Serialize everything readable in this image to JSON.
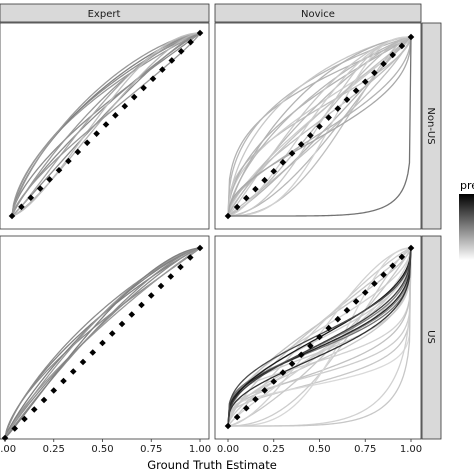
{
  "chart_data": {
    "type": "line",
    "xlabel": "Ground Truth Estimate",
    "ylabel": "",
    "xlim": [
      0,
      1
    ],
    "ylim": [
      0,
      1
    ],
    "x_ticks": [
      "0.00",
      "0.25",
      "0.50",
      "0.75",
      "1.00"
    ],
    "columns": [
      "Expert",
      "Novice"
    ],
    "rows": [
      "Non-US",
      "US"
    ],
    "legend": {
      "title": "pre",
      "type": "colorbar",
      "placement": "right",
      "low_color": "#ffffff",
      "high_color": "#000000"
    },
    "reference_line": {
      "style": "dotted-diamond",
      "x": [
        0,
        1
      ],
      "y": [
        0,
        1
      ]
    },
    "panels": [
      {
        "column": "Expert",
        "row": "Non-US",
        "curves": [
          {
            "a": 0.62,
            "b": 1.15,
            "shade": 0.55
          },
          {
            "a": 0.58,
            "b": 1.05,
            "shade": 0.6
          },
          {
            "a": 0.7,
            "b": 1.3,
            "shade": 0.5
          },
          {
            "a": 0.66,
            "b": 0.95,
            "shade": 0.55
          },
          {
            "a": 0.75,
            "b": 1.45,
            "shade": 0.6
          },
          {
            "a": 0.82,
            "b": 1.1,
            "shade": 0.55
          },
          {
            "a": 0.9,
            "b": 1.4,
            "shade": 0.6
          },
          {
            "a": 1.05,
            "b": 1.25,
            "shade": 0.55
          },
          {
            "a": 1.15,
            "b": 1.7,
            "shade": 0.65
          },
          {
            "a": 1.3,
            "b": 1.55,
            "shade": 0.7
          },
          {
            "a": 1.45,
            "b": 2.0,
            "shade": 0.75
          },
          {
            "a": 0.72,
            "b": 0.85,
            "shade": 0.6
          }
        ]
      },
      {
        "column": "Novice",
        "row": "Non-US",
        "curves": [
          {
            "a": 0.3,
            "b": 0.85,
            "shade": 0.7
          },
          {
            "a": 0.35,
            "b": 0.6,
            "shade": 0.75
          },
          {
            "a": 0.4,
            "b": 1.1,
            "shade": 0.72
          },
          {
            "a": 0.45,
            "b": 0.75,
            "shade": 0.8
          },
          {
            "a": 0.5,
            "b": 0.95,
            "shade": 0.7
          },
          {
            "a": 0.55,
            "b": 1.4,
            "shade": 0.78
          },
          {
            "a": 0.6,
            "b": 0.7,
            "shade": 0.75
          },
          {
            "a": 0.65,
            "b": 1.2,
            "shade": 0.72
          },
          {
            "a": 0.7,
            "b": 0.9,
            "shade": 0.8
          },
          {
            "a": 0.75,
            "b": 1.6,
            "shade": 0.7
          },
          {
            "a": 0.8,
            "b": 1.0,
            "shade": 0.76
          },
          {
            "a": 0.9,
            "b": 1.3,
            "shade": 0.72
          },
          {
            "a": 1.0,
            "b": 0.8,
            "shade": 0.75
          },
          {
            "a": 1.1,
            "b": 1.8,
            "shade": 0.78
          },
          {
            "a": 1.2,
            "b": 1.05,
            "shade": 0.7
          },
          {
            "a": 1.35,
            "b": 1.5,
            "shade": 0.74
          },
          {
            "a": 1.5,
            "b": 2.1,
            "shade": 0.8
          },
          {
            "a": 1.7,
            "b": 1.3,
            "shade": 0.72
          },
          {
            "a": 2.0,
            "b": 2.5,
            "shade": 0.78
          },
          {
            "a": 2.3,
            "b": 1.7,
            "shade": 0.75
          },
          {
            "a": 2.7,
            "b": 3.0,
            "shade": 0.82
          },
          {
            "a": 0.5,
            "b": 0.5,
            "shade": 0.7
          },
          {
            "a": 0.42,
            "b": 0.42,
            "shade": 0.66
          },
          {
            "a": 6.5,
            "b": 0.12,
            "shade": 0.45
          }
        ]
      },
      {
        "column": "Expert",
        "row": "US",
        "curves": [
          {
            "a": 0.65,
            "b": 0.95,
            "shade": 0.55
          },
          {
            "a": 0.7,
            "b": 1.1,
            "shade": 0.5
          },
          {
            "a": 0.75,
            "b": 1.25,
            "shade": 0.55
          },
          {
            "a": 0.8,
            "b": 1.05,
            "shade": 0.6
          },
          {
            "a": 0.85,
            "b": 1.3,
            "shade": 0.5
          },
          {
            "a": 0.9,
            "b": 1.2,
            "shade": 0.55
          },
          {
            "a": 0.95,
            "b": 1.45,
            "shade": 0.6
          },
          {
            "a": 1.0,
            "b": 1.35,
            "shade": 0.55
          },
          {
            "a": 1.1,
            "b": 1.6,
            "shade": 0.5
          }
        ]
      },
      {
        "column": "Novice",
        "row": "US",
        "curves": [
          {
            "a": 0.15,
            "b": 0.15,
            "shade": 0.8
          },
          {
            "a": 0.12,
            "b": 0.18,
            "shade": 0.82
          },
          {
            "a": 0.2,
            "b": 0.14,
            "shade": 0.78
          },
          {
            "a": 0.18,
            "b": 0.25,
            "shade": 0.8
          },
          {
            "a": 0.25,
            "b": 0.2,
            "shade": 0.76
          },
          {
            "a": 0.1,
            "b": 0.1,
            "shade": 0.85
          },
          {
            "a": 0.3,
            "b": 0.4,
            "shade": 0.8
          },
          {
            "a": 0.35,
            "b": 0.3,
            "shade": 0.78
          },
          {
            "a": 0.4,
            "b": 0.55,
            "shade": 0.82
          },
          {
            "a": 0.45,
            "b": 0.4,
            "shade": 0.8
          },
          {
            "a": 0.5,
            "b": 0.7,
            "shade": 0.76
          },
          {
            "a": 0.6,
            "b": 0.5,
            "shade": 0.8
          },
          {
            "a": 0.7,
            "b": 0.9,
            "shade": 0.78
          },
          {
            "a": 0.8,
            "b": 0.6,
            "shade": 0.82
          },
          {
            "a": 1.0,
            "b": 1.2,
            "shade": 0.8
          },
          {
            "a": 1.3,
            "b": 0.9,
            "shade": 0.78
          },
          {
            "a": 1.6,
            "b": 1.8,
            "shade": 0.82
          },
          {
            "a": 2.2,
            "b": 1.4,
            "shade": 0.8
          },
          {
            "a": 3.0,
            "b": 2.5,
            "shade": 0.84
          },
          {
            "a": 4.5,
            "b": 0.3,
            "shade": 0.82
          },
          {
            "a": 5.0,
            "b": 0.2,
            "shade": 0.78
          },
          {
            "a": 0.22,
            "b": 0.3,
            "shade": 0.55
          },
          {
            "a": 0.28,
            "b": 0.35,
            "shade": 0.5
          },
          {
            "a": 0.2,
            "b": 0.28,
            "shade": 0.45
          },
          {
            "a": 0.25,
            "b": 0.32,
            "shade": 0.15
          },
          {
            "a": 0.3,
            "b": 0.3,
            "shade": 0.2
          },
          {
            "a": 0.35,
            "b": 0.45,
            "shade": 0.1
          },
          {
            "a": 0.26,
            "b": 0.4,
            "shade": 0.3
          },
          {
            "a": 0.32,
            "b": 0.38,
            "shade": 0.25
          }
        ]
      }
    ]
  }
}
